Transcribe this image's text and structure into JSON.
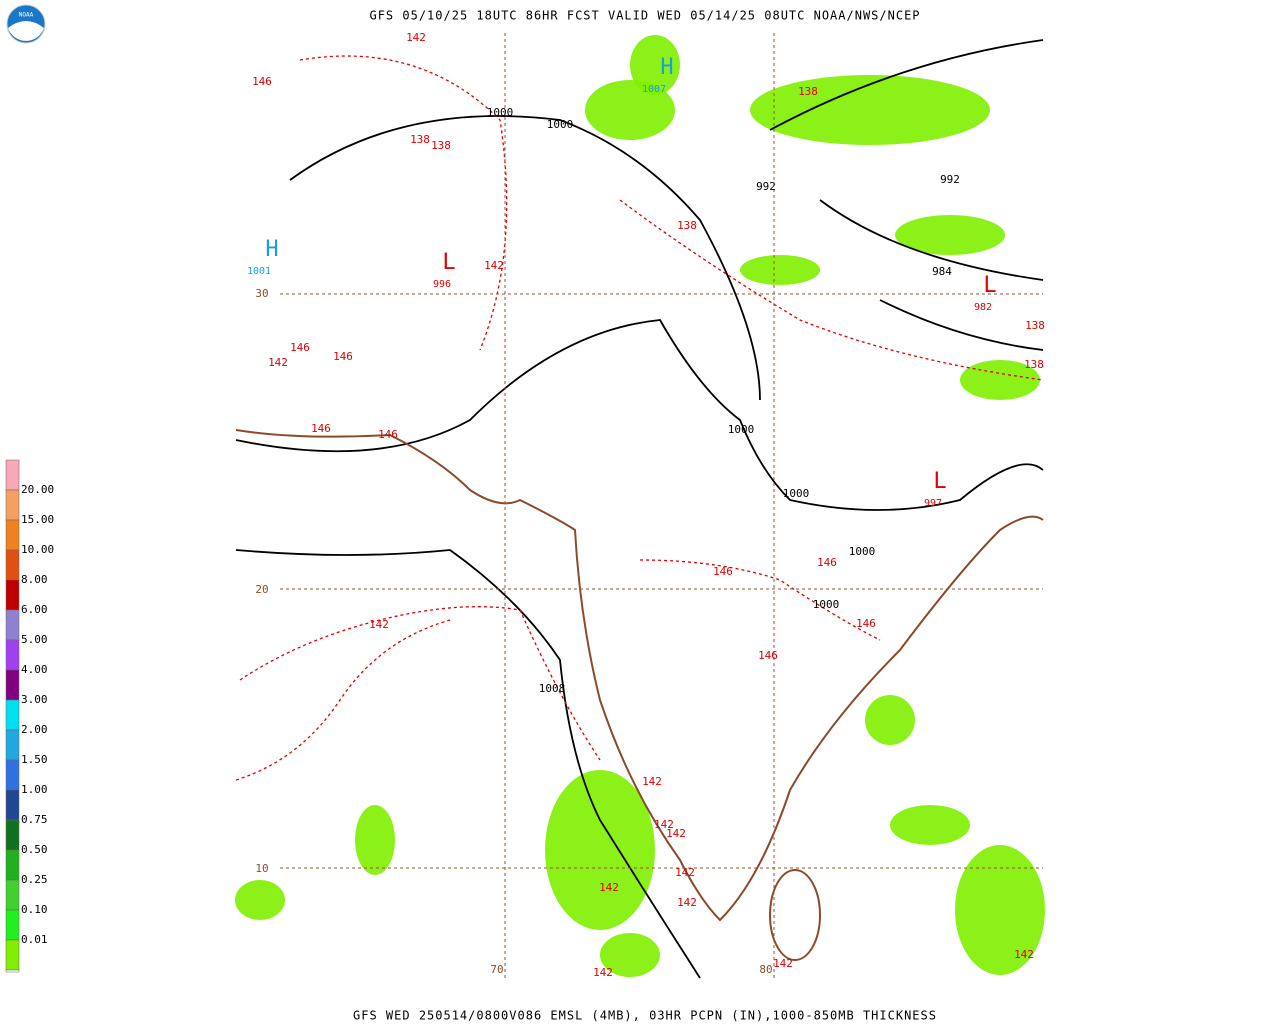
{
  "header": {
    "title": "GFS 05/10/25 18UTC 86HR FCST VALID WED 05/14/25 08UTC NOAA/NWS/NCEP",
    "logo_text": "NOAA"
  },
  "footer": {
    "text": "GFS WED 250514/0800V086 EMSL (4MB), 03HR PCPN (IN),1000-850MB THICKNESS"
  },
  "legend": {
    "colors": [
      "#f8a8b8",
      "#f4a060",
      "#f08020",
      "#e05010",
      "#c00000",
      "#9080d0",
      "#a040f0",
      "#800080",
      "#00e0f0",
      "#20a8e0",
      "#3070e0",
      "#204890",
      "#107020",
      "#20b020",
      "#40d030",
      "#20f020",
      "#80f000",
      "#ffffff"
    ],
    "labels": [
      "20.00",
      "15.00",
      "10.00",
      "8.00",
      "6.00",
      "5.00",
      "4.00",
      "3.00",
      "2.00",
      "1.50",
      "1.00",
      "0.75",
      "0.50",
      "0.25",
      "0.10",
      "0.01"
    ]
  },
  "map": {
    "highs": [
      {
        "symbol": "H",
        "value": "1007"
      },
      {
        "symbol": "H",
        "value": "1001"
      }
    ],
    "lows": [
      {
        "symbol": "L",
        "value": "996"
      },
      {
        "symbol": "L",
        "value": "982"
      },
      {
        "symbol": "L",
        "value": "997"
      }
    ],
    "pressure_labels": [
      "1000",
      "1000",
      "992",
      "992",
      "984",
      "1000",
      "1000",
      "1000",
      "1000",
      "1008"
    ],
    "thickness_labels": [
      "142",
      "146",
      "138",
      "138",
      "138",
      "138",
      "142",
      "146",
      "146",
      "142",
      "146",
      "146",
      "146",
      "146",
      "146",
      "142",
      "146",
      "142",
      "142",
      "142",
      "142",
      "142",
      "142",
      "142",
      "142",
      "142",
      "138",
      "138"
    ],
    "grid_labels": [
      "30",
      "20",
      "10",
      "70",
      "80"
    ]
  }
}
